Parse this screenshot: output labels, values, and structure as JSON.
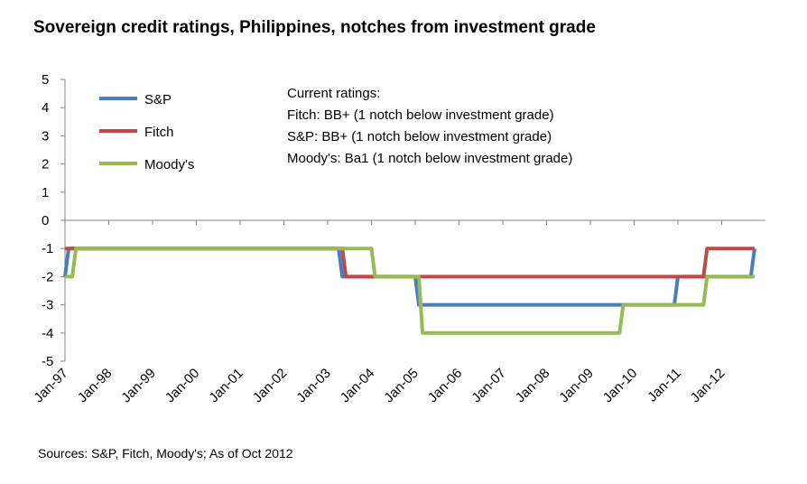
{
  "chart_data": {
    "type": "line",
    "title": "Sovereign credit ratings, Philippines, notches from investment grade",
    "xlabel": "",
    "ylabel": "",
    "ylim": [
      -5,
      5
    ],
    "yticks": [
      "5",
      "4",
      "3",
      "2",
      "1",
      "0",
      "-1",
      "-2",
      "-3",
      "-4",
      "-5"
    ],
    "x_start": "Jan-97",
    "x_months": 189,
    "xtick_labels": [
      "Jan-97",
      "Jan-98",
      "Jan-99",
      "Jan-00",
      "Jan-01",
      "Jan-02",
      "Jan-03",
      "Jan-04",
      "Jan-05",
      "Jan-06",
      "Jan-07",
      "Jan-08",
      "Jan-09",
      "Jan-10",
      "Jan-11",
      "Jan-12"
    ],
    "legend_position": "top-left",
    "series": [
      {
        "name": "S&P",
        "color": "#4a7ebb",
        "steps": [
          [
            0,
            -2
          ],
          [
            1,
            -1
          ],
          [
            76,
            -2
          ],
          [
            97,
            -3
          ],
          [
            168,
            -2
          ],
          [
            189,
            -1
          ]
        ]
      },
      {
        "name": "Fitch",
        "color": "#be4b48",
        "steps": [
          [
            0,
            -1
          ],
          [
            77,
            -2
          ],
          [
            176,
            -1
          ]
        ]
      },
      {
        "name": "Moody's",
        "color": "#98b954",
        "steps": [
          [
            0,
            -2
          ],
          [
            3,
            -1
          ],
          [
            85,
            -2
          ],
          [
            98,
            -4
          ],
          [
            153,
            -3
          ],
          [
            176,
            -2
          ],
          [
            192,
            -1
          ]
        ]
      }
    ],
    "annotation": {
      "heading": "Current ratings:",
      "lines": [
        "Fitch: BB+ (1 notch below investment  grade)",
        "S&P: BB+ (1 notch below investment  grade)",
        "Moody's: Ba1 (1 notch below investment grade)"
      ]
    },
    "source": "Sources: S&P, Fitch, Moody's; As of Oct 2012"
  }
}
